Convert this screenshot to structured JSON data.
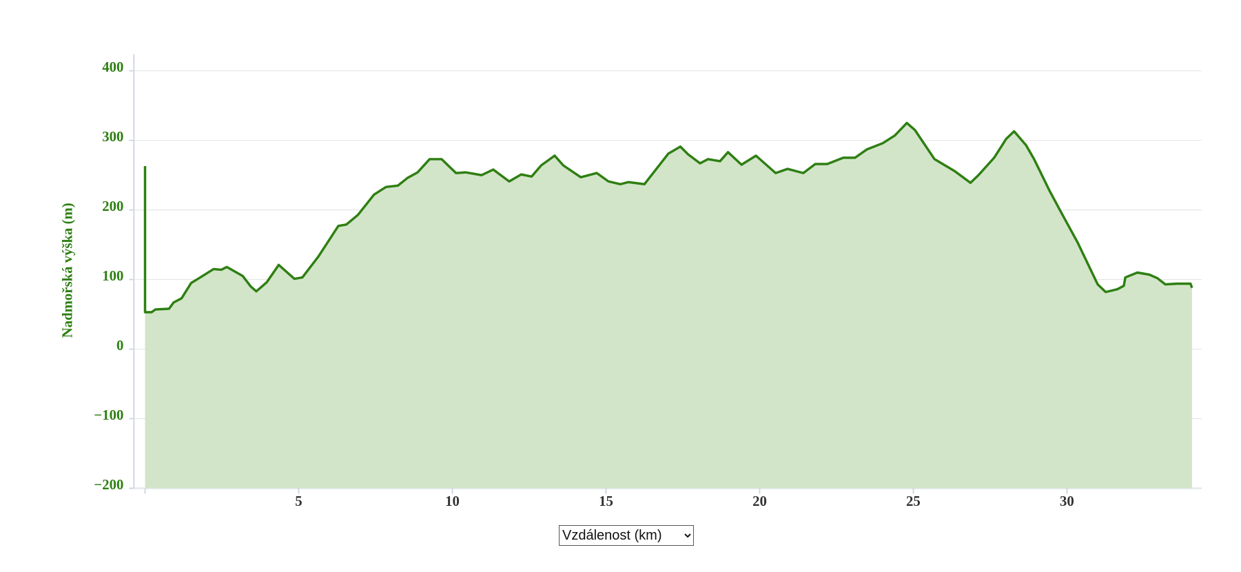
{
  "chart_data": {
    "type": "area",
    "y_label": "Nadmořská výška (m)",
    "x_selector": "Vzdálenost (km)",
    "color": "#2e7f12",
    "fill": "#d3e5c9",
    "grid": true,
    "xlim": [
      0,
      34.1
    ],
    "xticks": [
      5,
      10,
      15,
      20,
      25,
      30
    ],
    "ylim": [
      -200,
      400
    ],
    "yticks": [
      {
        "value": -200,
        "label": "−200"
      },
      {
        "value": -100,
        "label": "−100"
      },
      0,
      100,
      200,
      300,
      400
    ],
    "x": [
      0,
      0,
      0.21,
      0.34,
      0.78,
      0.93,
      1.19,
      1.5,
      1.76,
      2.23,
      2.48,
      2.66,
      3.18,
      3.44,
      3.62,
      3.96,
      4.35,
      4.86,
      5.12,
      5.64,
      6.29,
      6.55,
      6.93,
      7.45,
      7.84,
      8.23,
      8.54,
      8.87,
      9.26,
      9.65,
      10.12,
      10.43,
      10.95,
      11.33,
      11.85,
      12.24,
      12.58,
      12.89,
      13.33,
      13.61,
      14.18,
      14.7,
      15.08,
      15.47,
      15.73,
      16.25,
      16.64,
      17.03,
      17.42,
      17.67,
      18.06,
      18.32,
      18.71,
      18.97,
      19.41,
      19.88,
      20.52,
      20.91,
      21.42,
      21.81,
      22.2,
      22.72,
      23.1,
      23.49,
      24.01,
      24.4,
      24.79,
      25.05,
      25.69,
      26.34,
      26.86,
      27.12,
      27.63,
      28.02,
      28.28,
      28.67,
      28.93,
      29.44,
      29.83,
      30.35,
      31.0,
      31.26,
      31.64,
      31.85,
      31.9,
      32.29,
      32.68,
      32.94,
      33.2,
      33.58,
      34.02,
      34.07
    ],
    "values": [
      263,
      53,
      53,
      57,
      58,
      67,
      73,
      95,
      102,
      115,
      114,
      118,
      105,
      90,
      83,
      96,
      121,
      101,
      103,
      133,
      177,
      179,
      193,
      222,
      233,
      235,
      246,
      254,
      273,
      273,
      253,
      254,
      250,
      258,
      241,
      251,
      248,
      264,
      278,
      264,
      247,
      253,
      241,
      237,
      240,
      237,
      259,
      281,
      291,
      280,
      267,
      273,
      270,
      283,
      265,
      278,
      253,
      259,
      253,
      266,
      266,
      275,
      275,
      287,
      296,
      307,
      325,
      315,
      273,
      256,
      239,
      250,
      275,
      302,
      313,
      293,
      273,
      227,
      195,
      153,
      93,
      82,
      86,
      91,
      103,
      110,
      107,
      102,
      93,
      94,
      94,
      88
    ]
  }
}
